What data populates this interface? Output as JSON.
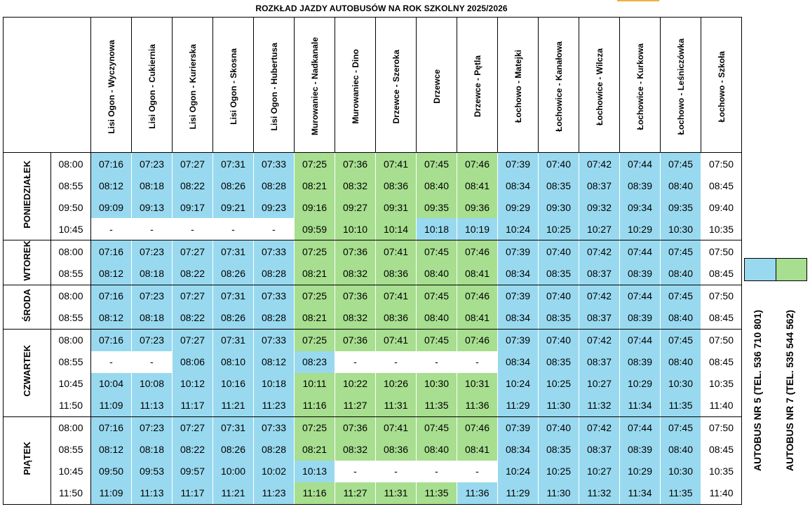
{
  "title": "ROZKŁAD JAZDY AUTOBUSÓW NA ROK SZKOLNY 2025/2026",
  "colors": {
    "bus5": "#99d9ef",
    "bus7": "#a7de8f",
    "none": "#ffffff"
  },
  "stops": [
    "Lisi Ogon - Wyczynowa",
    "Lisi Ogon - Cukiernia",
    "Lisi Ogon - Kurierska",
    "Lisi Ogon - Skosna",
    "Lisi Ogon - Hubertusa",
    "Murowaniec - Nadkanale",
    "Murowaniec - Dino",
    "Drzewce - Szeroka",
    "Drzewce",
    "Drzewce - Pętla",
    "Łochowo - Matejki",
    "Łochowice - Kanałowa",
    "Łochowice - Wilcza",
    "Łochowice - Kurkowa",
    "Łochowo - Leśniczówka",
    "Łochowo - Szkoła"
  ],
  "days": [
    {
      "name": "PONIEDZIAŁEK",
      "rows": [
        {
          "time": "08:00",
          "cells": [
            "07:16",
            "07:23",
            "07:27",
            "07:31",
            "07:33",
            "07:25",
            "07:36",
            "07:41",
            "07:45",
            "07:46",
            "07:39",
            "07:40",
            "07:42",
            "07:44",
            "07:45",
            "07:50"
          ],
          "colors": "BBBBBGGGGGBBBBBW"
        },
        {
          "time": "08:55",
          "cells": [
            "08:12",
            "08:18",
            "08:22",
            "08:26",
            "08:28",
            "08:21",
            "08:32",
            "08:36",
            "08:40",
            "08:41",
            "08:34",
            "08:35",
            "08:37",
            "08:39",
            "08:40",
            "08:45"
          ],
          "colors": "BBBBBGGGGGBBBBBW"
        },
        {
          "time": "09:50",
          "cells": [
            "09:09",
            "09:13",
            "09:17",
            "09:21",
            "09:23",
            "09:16",
            "09:27",
            "09:31",
            "09:35",
            "09:36",
            "09:29",
            "09:30",
            "09:32",
            "09:34",
            "09:35",
            "09:40"
          ],
          "colors": "BBBBBGGGGGBBBBBW"
        },
        {
          "time": "10:45",
          "cells": [
            "-",
            "-",
            "-",
            "-",
            "-",
            "09:59",
            "10:10",
            "10:14",
            "10:18",
            "10:19",
            "10:24",
            "10:25",
            "10:27",
            "10:29",
            "10:30",
            "10:35"
          ],
          "colors": "WWWWWGGGBBBBBBBW"
        }
      ]
    },
    {
      "name": "WTOREK",
      "rows": [
        {
          "time": "08:00",
          "cells": [
            "07:16",
            "07:23",
            "07:27",
            "07:31",
            "07:33",
            "07:25",
            "07:36",
            "07:41",
            "07:45",
            "07:46",
            "07:39",
            "07:40",
            "07:42",
            "07:44",
            "07:45",
            "07:50"
          ],
          "colors": "BBBBBGGGGGBBBBBW"
        },
        {
          "time": "08:55",
          "cells": [
            "08:12",
            "08:18",
            "08:22",
            "08:26",
            "08:28",
            "08:21",
            "08:32",
            "08:36",
            "08:40",
            "08:41",
            "08:34",
            "08:35",
            "08:37",
            "08:39",
            "08:40",
            "08:45"
          ],
          "colors": "BBBBBGGGGGBBBBBW"
        }
      ]
    },
    {
      "name": "ŚRODA",
      "rows": [
        {
          "time": "08:00",
          "cells": [
            "07:16",
            "07:23",
            "07:27",
            "07:31",
            "07:33",
            "07:25",
            "07:36",
            "07:41",
            "07:45",
            "07:46",
            "07:39",
            "07:40",
            "07:42",
            "07:44",
            "07:45",
            "07:50"
          ],
          "colors": "BBBBBGGGGGBBBBBW"
        },
        {
          "time": "08:55",
          "cells": [
            "08:12",
            "08:18",
            "08:22",
            "08:26",
            "08:28",
            "08:21",
            "08:32",
            "08:36",
            "08:40",
            "08:41",
            "08:34",
            "08:35",
            "08:37",
            "08:39",
            "08:40",
            "08:45"
          ],
          "colors": "BBBBBGGGGGBBBBBW"
        }
      ]
    },
    {
      "name": "CZWARTEK",
      "rows": [
        {
          "time": "08:00",
          "cells": [
            "07:16",
            "07:23",
            "07:27",
            "07:31",
            "07:33",
            "07:25",
            "07:36",
            "07:41",
            "07:45",
            "07:46",
            "07:39",
            "07:40",
            "07:42",
            "07:44",
            "07:45",
            "07:50"
          ],
          "colors": "BBBBBGGGGGBBBBBW"
        },
        {
          "time": "08:55",
          "cells": [
            "-",
            "-",
            "08:06",
            "08:10",
            "08:12",
            "08:23",
            "-",
            "-",
            "-",
            "-",
            "08:34",
            "08:35",
            "08:37",
            "08:39",
            "08:40",
            "08:45"
          ],
          "colors": "WWBBBBWWWWBBBBBW"
        },
        {
          "time": "10:45",
          "cells": [
            "10:04",
            "10:08",
            "10:12",
            "10:16",
            "10:18",
            "10:11",
            "10:22",
            "10:26",
            "10:30",
            "10:31",
            "10:24",
            "10:25",
            "10:27",
            "10:29",
            "10:30",
            "10:35"
          ],
          "colors": "BBBBBGGGGGBBBBBW"
        },
        {
          "time": "11:50",
          "cells": [
            "11:09",
            "11:13",
            "11:17",
            "11:21",
            "11:23",
            "11:16",
            "11:27",
            "11:31",
            "11:35",
            "11:36",
            "11:29",
            "11:30",
            "11:32",
            "11:34",
            "11:35",
            "11:40"
          ],
          "colors": "BBBBBGGGGGBBBBBW"
        }
      ]
    },
    {
      "name": "PIĄTEK",
      "rows": [
        {
          "time": "08:00",
          "cells": [
            "07:16",
            "07:23",
            "07:27",
            "07:31",
            "07:33",
            "07:25",
            "07:36",
            "07:41",
            "07:45",
            "07:46",
            "07:39",
            "07:40",
            "07:42",
            "07:44",
            "07:45",
            "07:50"
          ],
          "colors": "BBBBBGGGGGBBBBBW"
        },
        {
          "time": "08:55",
          "cells": [
            "08:12",
            "08:18",
            "08:22",
            "08:26",
            "08:28",
            "08:21",
            "08:32",
            "08:36",
            "08:40",
            "08:41",
            "08:34",
            "08:35",
            "08:37",
            "08:39",
            "08:40",
            "08:45"
          ],
          "colors": "BBBBBGGGGGBBBBBW"
        },
        {
          "time": "10:45",
          "cells": [
            "09:50",
            "09:53",
            "09:57",
            "10:00",
            "10:02",
            "10:13",
            "-",
            "-",
            "-",
            "-",
            "10:24",
            "10:25",
            "10:27",
            "10:29",
            "10:30",
            "10:35"
          ],
          "colors": "BBBBBBWWWWBBBBBW"
        },
        {
          "time": "11:50",
          "cells": [
            "11:09",
            "11:13",
            "11:17",
            "11:21",
            "11:23",
            "11:16",
            "11:27",
            "11:31",
            "11:35",
            "11:36",
            "11:29",
            "11:30",
            "11:32",
            "11:34",
            "11:35",
            "11:40"
          ],
          "colors": "BBBBBGGGGBBBBBBW"
        }
      ]
    }
  ],
  "legend": {
    "bus5": "AUTOBUS NR 5 (TEL. 536  710  801)",
    "bus7": "AUTOBUS NR 7 (TEL. 535 544 562)"
  }
}
